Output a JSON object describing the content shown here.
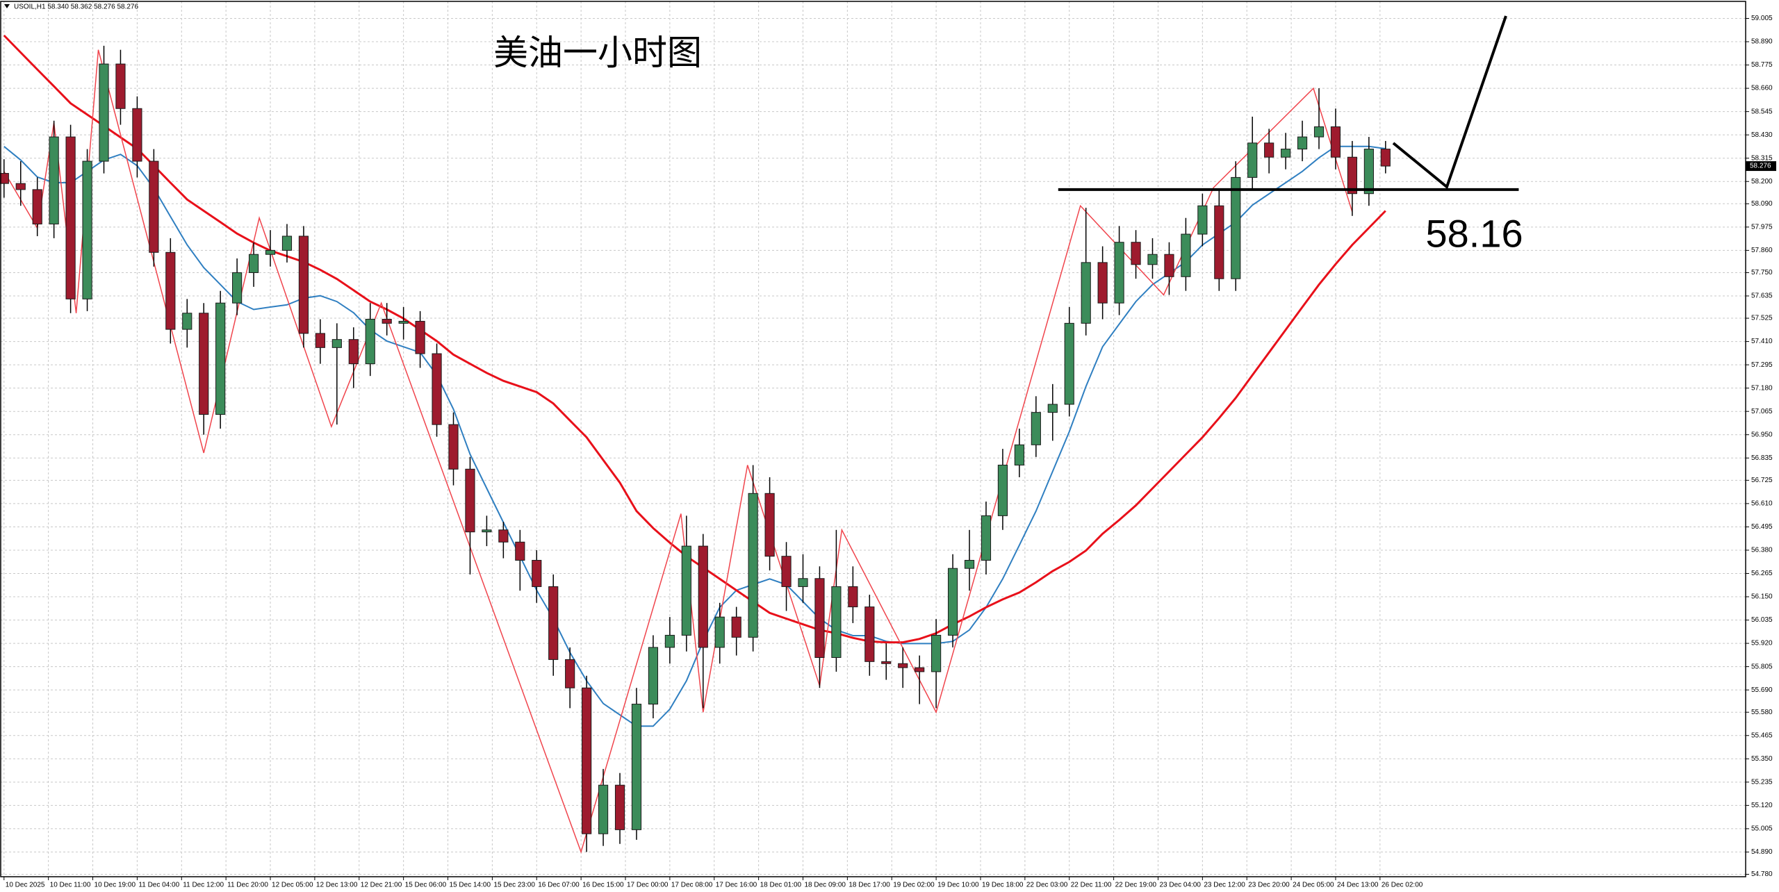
{
  "chart_data": {
    "type": "candlestick",
    "header": "USOIL,H1 58.340 58.362 58.276 58.276",
    "title": "美油一小时图",
    "xlim": [
      -0.6,
      313.9
    ],
    "ylim": [
      54.768,
      59.089
    ],
    "grid": true,
    "up_color": "#3c8c5a",
    "down_color": "#9e1b2e",
    "wick_color": "#000000",
    "xticks": [
      {
        "value": 0,
        "label": "10 Dec 2025"
      },
      {
        "value": 8,
        "label": "10 Dec 11:00"
      },
      {
        "value": 16,
        "label": "10 Dec 19:00"
      },
      {
        "value": 24,
        "label": "11 Dec 04:00"
      },
      {
        "value": 32,
        "label": "11 Dec 12:00"
      },
      {
        "value": 40,
        "label": "11 Dec 20:00"
      },
      {
        "value": 48,
        "label": "12 Dec 05:00"
      },
      {
        "value": 56,
        "label": "12 Dec 13:00"
      },
      {
        "value": 64,
        "label": "12 Dec 21:00"
      },
      {
        "value": 72,
        "label": "15 Dec 06:00"
      },
      {
        "value": 80,
        "label": "15 Dec 14:00"
      },
      {
        "value": 88,
        "label": "15 Dec 23:00"
      },
      {
        "value": 96,
        "label": "16 Dec 07:00"
      },
      {
        "value": 104,
        "label": "16 Dec 15:00"
      },
      {
        "value": 112,
        "label": "17 Dec 00:00"
      },
      {
        "value": 120,
        "label": "17 Dec 08:00"
      },
      {
        "value": 128,
        "label": "17 Dec 16:00"
      },
      {
        "value": 136,
        "label": "18 Dec 01:00"
      },
      {
        "value": 144,
        "label": "18 Dec 09:00"
      },
      {
        "value": 152,
        "label": "18 Dec 17:00"
      },
      {
        "value": 160,
        "label": "19 Dec 02:00"
      },
      {
        "value": 168,
        "label": "19 Dec 10:00"
      },
      {
        "value": 176,
        "label": "19 Dec 18:00"
      },
      {
        "value": 184,
        "label": "22 Dec 03:00"
      },
      {
        "value": 192,
        "label": "22 Dec 11:00"
      },
      {
        "value": 200,
        "label": "22 Dec 19:00"
      },
      {
        "value": 208,
        "label": "23 Dec 04:00"
      },
      {
        "value": 216,
        "label": "23 Dec 12:00"
      },
      {
        "value": 224,
        "label": "23 Dec 20:00"
      },
      {
        "value": 232,
        "label": "24 Dec 05:00"
      },
      {
        "value": 240,
        "label": "24 Dec 13:00"
      },
      {
        "value": 248,
        "label": "26 Dec 02:00"
      }
    ],
    "yticks": [
      59.005,
      {
        "value": 58.89,
        "label": "58.890"
      },
      58.775,
      {
        "value": 58.66,
        "label": "58.660"
      },
      58.545,
      {
        "value": 58.43,
        "label": "58.430"
      },
      58.315,
      {
        "value": 58.2,
        "label": "58.200"
      },
      {
        "value": 58.09,
        "label": "58.090"
      },
      57.975,
      {
        "value": 57.86,
        "label": "57.860"
      },
      {
        "value": 57.75,
        "label": "57.750"
      },
      57.635,
      57.525,
      {
        "value": 57.41,
        "label": "57.410"
      },
      57.295,
      {
        "value": 57.18,
        "label": "57.180"
      },
      57.065,
      {
        "value": 56.95,
        "label": "56.950"
      },
      56.835,
      56.725,
      {
        "value": 56.61,
        "label": "56.610"
      },
      56.495,
      {
        "value": 56.38,
        "label": "56.380"
      },
      56.265,
      {
        "value": 56.15,
        "label": "56.150"
      },
      56.035,
      {
        "value": 55.92,
        "label": "55.920"
      },
      55.805,
      {
        "value": 55.69,
        "label": "55.690"
      },
      {
        "value": 55.58,
        "label": "55.580"
      },
      55.465,
      {
        "value": 55.35,
        "label": "55.350"
      },
      55.235,
      {
        "value": 55.12,
        "label": "55.120"
      },
      55.005,
      {
        "value": 54.89,
        "label": "54.890"
      },
      {
        "value": 54.78,
        "label": "54.780"
      }
    ],
    "x": [
      0,
      3,
      6,
      9,
      12,
      15,
      18,
      21,
      24,
      27,
      30,
      33,
      36,
      39,
      42,
      45,
      48,
      51,
      54,
      57,
      60,
      63,
      66,
      69,
      72,
      75,
      78,
      81,
      84,
      87,
      90,
      93,
      96,
      99,
      102,
      105,
      108,
      111,
      114,
      117,
      120,
      123,
      126,
      129,
      132,
      135,
      138,
      141,
      144,
      147,
      150,
      153,
      156,
      159,
      162,
      165,
      168,
      171,
      174,
      177,
      180,
      183,
      186,
      189,
      192,
      195,
      198,
      201,
      204,
      207,
      210,
      213,
      216,
      219,
      222,
      225,
      228,
      231,
      234,
      237,
      240,
      243,
      246,
      249
    ],
    "open": [
      58.24,
      58.19,
      58.16,
      57.99,
      58.42,
      57.62,
      58.3,
      58.78,
      58.56,
      58.3,
      57.85,
      57.47,
      57.55,
      57.05,
      57.6,
      57.75,
      57.84,
      57.86,
      57.93,
      57.45,
      57.38,
      57.42,
      57.3,
      57.52,
      57.5,
      57.51,
      57.35,
      57.0,
      56.78,
      56.47,
      56.48,
      56.42,
      56.33,
      56.2,
      55.84,
      55.7,
      54.98,
      55.22,
      55.0,
      55.62,
      55.9,
      55.96,
      56.4,
      55.9,
      56.05,
      55.95,
      56.66,
      56.35,
      56.2,
      56.24,
      55.85,
      56.2,
      56.1,
      55.83,
      55.82,
      55.8,
      55.78,
      55.96,
      56.29,
      56.33,
      56.55,
      56.8,
      56.9,
      57.06,
      57.1,
      57.5,
      57.8,
      57.6,
      57.9,
      57.79,
      57.84,
      57.73,
      57.94,
      58.08,
      57.72,
      58.22,
      58.39,
      58.32,
      58.36,
      58.42,
      58.47,
      58.32,
      58.14,
      58.36
    ],
    "high": [
      58.31,
      58.3,
      58.22,
      58.5,
      58.48,
      58.36,
      58.87,
      58.85,
      58.62,
      58.36,
      57.92,
      57.62,
      57.6,
      57.66,
      57.82,
      57.9,
      57.96,
      57.99,
      57.98,
      57.52,
      57.5,
      57.48,
      57.6,
      57.6,
      57.58,
      57.56,
      57.4,
      57.06,
      56.84,
      56.55,
      56.52,
      56.48,
      56.38,
      56.26,
      55.9,
      55.76,
      55.3,
      55.28,
      55.7,
      55.96,
      56.05,
      56.55,
      56.46,
      56.12,
      56.1,
      56.8,
      56.74,
      56.42,
      56.36,
      56.3,
      56.48,
      56.3,
      56.16,
      55.92,
      55.9,
      55.86,
      56.04,
      56.36,
      56.48,
      56.62,
      56.88,
      56.98,
      57.14,
      57.2,
      57.58,
      58.07,
      57.88,
      57.98,
      57.96,
      57.92,
      57.9,
      58.02,
      58.14,
      58.16,
      58.3,
      58.52,
      58.46,
      58.44,
      58.5,
      58.66,
      58.56,
      58.4,
      58.42,
      58.4
    ],
    "low": [
      58.12,
      58.08,
      57.93,
      57.92,
      57.55,
      57.56,
      58.24,
      58.48,
      58.22,
      57.78,
      57.4,
      57.38,
      56.95,
      56.98,
      57.54,
      57.68,
      57.78,
      57.8,
      57.38,
      57.3,
      57.0,
      57.18,
      57.24,
      57.44,
      57.42,
      57.28,
      56.94,
      56.7,
      56.26,
      56.4,
      56.34,
      56.18,
      56.12,
      55.76,
      55.6,
      54.89,
      54.92,
      54.93,
      54.95,
      55.55,
      55.82,
      55.88,
      55.6,
      55.82,
      55.86,
      55.88,
      56.28,
      56.08,
      56.12,
      55.7,
      55.78,
      56.02,
      55.76,
      55.74,
      55.7,
      55.62,
      55.6,
      55.9,
      56.18,
      56.26,
      56.48,
      56.74,
      56.84,
      56.92,
      57.04,
      57.44,
      57.52,
      57.54,
      57.72,
      57.72,
      57.64,
      57.66,
      57.88,
      57.66,
      57.66,
      58.16,
      58.24,
      58.26,
      58.3,
      58.36,
      58.26,
      58.03,
      58.08,
      58.24
    ],
    "close": [
      58.19,
      58.16,
      57.99,
      58.42,
      57.62,
      58.3,
      58.78,
      58.56,
      58.3,
      57.85,
      57.47,
      57.55,
      57.05,
      57.6,
      57.75,
      57.84,
      57.86,
      57.93,
      57.45,
      57.38,
      57.42,
      57.3,
      57.52,
      57.5,
      57.51,
      57.35,
      57.0,
      56.78,
      56.47,
      56.48,
      56.42,
      56.33,
      56.2,
      55.84,
      55.7,
      54.98,
      55.22,
      55.0,
      55.62,
      55.9,
      55.96,
      56.4,
      55.9,
      56.05,
      55.95,
      56.66,
      56.35,
      56.2,
      56.24,
      55.85,
      56.2,
      56.1,
      55.83,
      55.82,
      55.8,
      55.78,
      55.96,
      56.29,
      56.33,
      56.55,
      56.8,
      56.9,
      57.06,
      57.1,
      57.5,
      57.8,
      57.6,
      57.9,
      57.79,
      57.84,
      57.73,
      57.94,
      58.08,
      57.72,
      58.22,
      58.39,
      58.32,
      58.36,
      58.42,
      58.47,
      58.32,
      58.14,
      58.36,
      58.276
    ],
    "lines": [
      {
        "color": "#2f7fc1",
        "values": [
          58.373,
          58.306,
          58.222,
          58.194,
          58.194,
          58.25,
          58.306,
          58.334,
          58.278,
          58.167,
          58.027,
          57.887,
          57.775,
          57.691,
          57.607,
          57.568,
          57.58,
          57.591,
          57.624,
          57.636,
          57.607,
          57.552,
          57.468,
          57.412,
          57.384,
          57.356,
          57.244,
          57.076,
          56.853,
          56.685,
          56.517,
          56.35,
          56.182,
          56.042,
          55.875,
          55.735,
          55.623,
          55.567,
          55.511,
          55.511,
          55.595,
          55.735,
          55.93,
          56.098,
          56.182,
          56.21,
          56.238,
          56.21,
          56.126,
          56.042,
          55.986,
          55.958,
          55.958,
          55.93,
          55.919,
          55.919,
          55.919,
          55.93,
          55.986,
          56.098,
          56.238,
          56.405,
          56.573,
          56.769,
          56.965,
          57.188,
          57.384,
          57.496,
          57.607,
          57.691,
          57.747,
          57.803,
          57.887,
          57.943,
          57.999,
          58.083,
          58.139,
          58.194,
          58.25,
          58.317,
          58.373,
          58.373,
          58.373,
          58.362
        ]
      },
      {
        "color": "#e8101a",
        "values": [
          58.921,
          58.837,
          58.753,
          58.67,
          58.586,
          58.53,
          58.474,
          58.418,
          58.362,
          58.278,
          58.194,
          58.111,
          58.055,
          57.999,
          57.943,
          57.898,
          57.859,
          57.831,
          57.803,
          57.764,
          57.719,
          57.663,
          57.607,
          57.568,
          57.524,
          57.468,
          57.412,
          57.345,
          57.3,
          57.255,
          57.216,
          57.188,
          57.16,
          57.104,
          57.02,
          56.937,
          56.825,
          56.713,
          56.573,
          56.489,
          56.417,
          56.35,
          56.294,
          56.238,
          56.182,
          56.126,
          56.07,
          56.042,
          56.014,
          55.986,
          55.97,
          55.947,
          55.93,
          55.925,
          55.925,
          55.942,
          55.97,
          56.014,
          56.053,
          56.098,
          56.137,
          56.171,
          56.221,
          56.277,
          56.322,
          56.378,
          56.461,
          56.529,
          56.601,
          56.685,
          56.769,
          56.853,
          56.937,
          57.032,
          57.132,
          57.244,
          57.356,
          57.468,
          57.58,
          57.691,
          57.792,
          57.887,
          57.971,
          58.055
        ]
      }
    ],
    "zigzag": {
      "color": "#f0444c",
      "x": [
        0,
        6,
        9,
        13,
        17,
        36,
        46,
        59,
        68,
        104,
        122,
        126,
        134,
        147,
        151,
        168,
        194,
        209,
        218,
        236,
        243
      ],
      "values": [
        58.25,
        57.97,
        58.49,
        57.55,
        58.85,
        56.86,
        58.02,
        56.99,
        57.6,
        54.89,
        56.56,
        55.58,
        56.8,
        55.71,
        56.48,
        55.58,
        58.08,
        57.64,
        58.17,
        58.66,
        58.05
      ]
    },
    "level": 58.16,
    "last_price": 58.276
  }
}
